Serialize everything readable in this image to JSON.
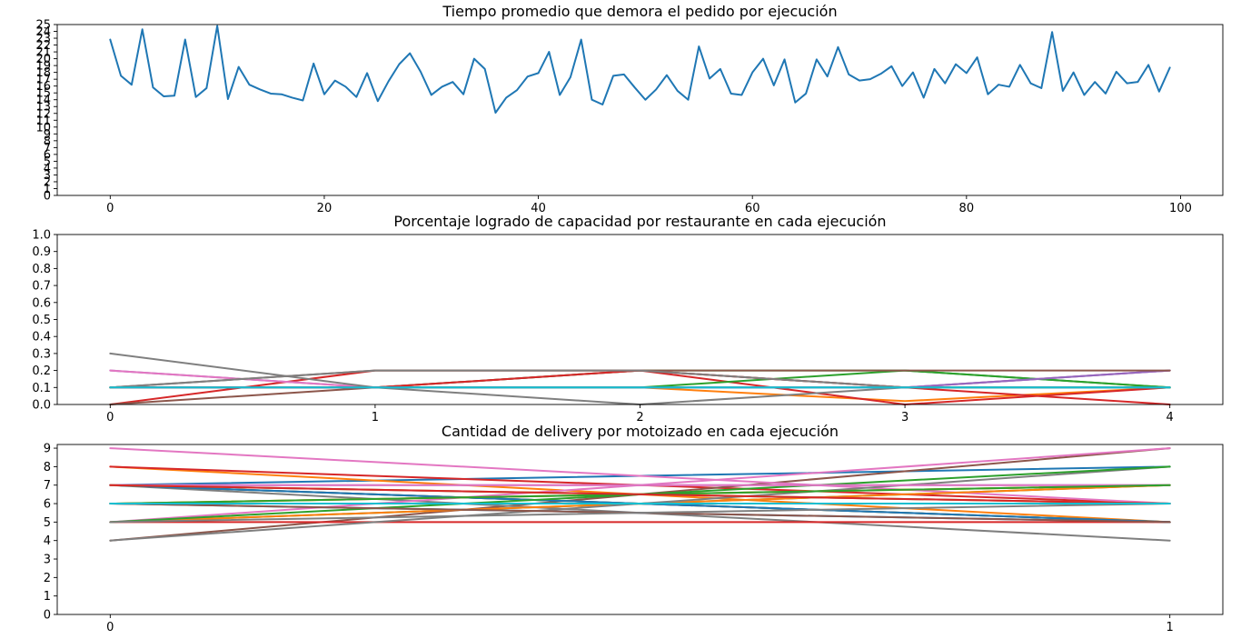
{
  "chart_data": [
    {
      "type": "line",
      "title": "Tiempo promedio que demora el pedido por ejecución",
      "xlim": [
        -4.95,
        103.95
      ],
      "ylim": [
        0,
        25
      ],
      "xticks": [
        0,
        20,
        40,
        60,
        80,
        100
      ],
      "yticks": [
        0,
        1,
        2,
        3,
        4,
        5,
        6,
        7,
        8,
        9,
        10,
        11,
        12,
        13,
        14,
        15,
        16,
        17,
        18,
        19,
        20,
        21,
        22,
        23,
        24,
        25
      ],
      "grid": false,
      "series": [
        {
          "color": "#1f77b4",
          "x": [
            0,
            1,
            2,
            3,
            4,
            5,
            6,
            7,
            8,
            9,
            10,
            11,
            12,
            13,
            14,
            15,
            16,
            17,
            18,
            19,
            20,
            21,
            22,
            23,
            24,
            25,
            26,
            27,
            28,
            29,
            30,
            31,
            32,
            33,
            34,
            35,
            36,
            37,
            38,
            39,
            40,
            41,
            42,
            43,
            44,
            45,
            46,
            47,
            48,
            49,
            50,
            51,
            52,
            53,
            54,
            55,
            56,
            57,
            58,
            59,
            60,
            61,
            62,
            63,
            64,
            65,
            66,
            67,
            68,
            69,
            70,
            71,
            72,
            73,
            74,
            75,
            76,
            77,
            78,
            79,
            80,
            81,
            82,
            83,
            84,
            85,
            86,
            87,
            88,
            89,
            90,
            91,
            92,
            93,
            94,
            95,
            96,
            97,
            98,
            99
          ],
          "values": [
            22.8,
            17.5,
            16.2,
            24.3,
            15.8,
            14.5,
            14.6,
            22.8,
            14.4,
            15.7,
            24.8,
            14.1,
            18.8,
            16.2,
            15.5,
            14.9,
            14.8,
            14.3,
            13.9,
            19.3,
            14.8,
            16.8,
            15.9,
            14.4,
            17.9,
            13.8,
            16.7,
            19.2,
            20.8,
            18.1,
            14.7,
            15.9,
            16.6,
            14.8,
            20.0,
            18.5,
            12.1,
            14.3,
            15.4,
            17.4,
            17.9,
            21.0,
            14.7,
            17.3,
            22.8,
            14.0,
            13.3,
            17.5,
            17.7,
            15.8,
            14.0,
            15.5,
            17.6,
            15.3,
            14.0,
            21.8,
            17.1,
            18.5,
            14.9,
            14.7,
            18.0,
            20.0,
            16.1,
            19.9,
            13.6,
            14.9,
            19.9,
            17.4,
            21.7,
            17.7,
            16.8,
            17.0,
            17.8,
            18.9,
            16.0,
            18.0,
            14.3,
            18.5,
            16.4,
            19.2,
            17.9,
            20.2,
            14.8,
            16.2,
            15.9,
            19.1,
            16.4,
            15.7,
            23.9,
            15.3,
            18.0,
            14.7,
            16.6,
            14.9,
            18.1,
            16.4,
            16.6,
            19.1,
            15.2,
            18.7
          ]
        }
      ]
    },
    {
      "type": "line",
      "title": "Porcentaje logrado de capacidad por restaurante en cada ejecución",
      "xlim": [
        -0.2,
        4.2
      ],
      "ylim": [
        0,
        1.0
      ],
      "xticks": [
        0,
        1,
        2,
        3,
        4
      ],
      "yticks": [
        0.0,
        0.1,
        0.2,
        0.3,
        0.4,
        0.5,
        0.6,
        0.7,
        0.8,
        0.9,
        1.0
      ],
      "grid": false,
      "x": [
        0,
        1,
        2,
        3,
        4
      ],
      "series": [
        {
          "color": "#1f77b4",
          "values": [
            0.1,
            0.1,
            0.1,
            0.1,
            0.1
          ]
        },
        {
          "color": "#ff7f0e",
          "values": [
            0.1,
            0.1,
            0.1,
            0.02,
            0.1
          ]
        },
        {
          "color": "#2ca02c",
          "values": [
            0.1,
            0.1,
            0.2,
            0.2,
            0.1
          ]
        },
        {
          "color": "#d62728",
          "values": [
            0.0,
            0.2,
            0.2,
            0.0,
            0.1
          ]
        },
        {
          "color": "#9467bd",
          "values": [
            0.2,
            0.1,
            0.1,
            0.1,
            0.2
          ]
        },
        {
          "color": "#8c564b",
          "values": [
            0.0,
            0.1,
            0.2,
            0.1,
            0.1
          ]
        },
        {
          "color": "#e377c2",
          "values": [
            0.2,
            0.1,
            0.1,
            0.1,
            0.2
          ]
        },
        {
          "color": "#7f7f7f",
          "values": [
            0.3,
            0.1,
            0.0,
            0.1,
            0.1
          ]
        },
        {
          "color": "#bcbd22",
          "values": [
            0.1,
            0.1,
            0.1,
            0.1,
            0.1
          ]
        },
        {
          "color": "#17becf",
          "values": [
            0.1,
            0.1,
            0.1,
            0.1,
            0.1
          ]
        },
        {
          "color": "#2ca02c",
          "values": [
            0.1,
            0.1,
            0.1,
            0.2,
            0.1
          ]
        },
        {
          "color": "#d62728",
          "values": [
            0.1,
            0.1,
            0.2,
            0.1,
            0.0
          ]
        },
        {
          "color": "#9467bd",
          "values": [
            0.1,
            0.1,
            0.1,
            0.1,
            0.2
          ]
        },
        {
          "color": "#8c564b",
          "values": [
            0.1,
            0.2,
            0.2,
            0.2,
            0.2
          ]
        },
        {
          "color": "#7f7f7f",
          "values": [
            0.1,
            0.2,
            0.2,
            0.1,
            0.1
          ]
        },
        {
          "color": "#17becf",
          "values": [
            0.1,
            0.1,
            0.1,
            0.1,
            0.1
          ]
        }
      ]
    },
    {
      "type": "line",
      "title": "Cantidad de delivery por motoizado en cada ejecución",
      "xlim": [
        -0.05,
        1.05
      ],
      "ylim": [
        0,
        9.2
      ],
      "xticks": [
        0,
        1
      ],
      "yticks": [
        0,
        1,
        2,
        3,
        4,
        5,
        6,
        7,
        8,
        9
      ],
      "grid": false,
      "x": [
        0,
        1
      ],
      "series": [
        {
          "color": "#1f77b4",
          "values": [
            7,
            8
          ]
        },
        {
          "color": "#ff7f0e",
          "values": [
            8,
            5
          ]
        },
        {
          "color": "#2ca02c",
          "values": [
            5,
            7
          ]
        },
        {
          "color": "#d62728",
          "values": [
            8,
            6
          ]
        },
        {
          "color": "#9467bd",
          "values": [
            6,
            6
          ]
        },
        {
          "color": "#8c564b",
          "values": [
            4,
            9
          ]
        },
        {
          "color": "#e377c2",
          "values": [
            9,
            6
          ]
        },
        {
          "color": "#7f7f7f",
          "values": [
            7,
            4
          ]
        },
        {
          "color": "#bcbd22",
          "values": [
            6,
            7
          ]
        },
        {
          "color": "#17becf",
          "values": [
            6,
            6
          ]
        },
        {
          "color": "#1f77b4",
          "values": [
            6,
            5
          ]
        },
        {
          "color": "#ff7f0e",
          "values": [
            5,
            7
          ]
        },
        {
          "color": "#2ca02c",
          "values": [
            7,
            5
          ]
        },
        {
          "color": "#d62728",
          "values": [
            5,
            5
          ]
        },
        {
          "color": "#9467bd",
          "values": [
            7,
            6
          ]
        },
        {
          "color": "#8c564b",
          "values": [
            7,
            5
          ]
        },
        {
          "color": "#e377c2",
          "values": [
            5,
            9
          ]
        },
        {
          "color": "#7f7f7f",
          "values": [
            4,
            8
          ]
        },
        {
          "color": "#bcbd22",
          "values": [
            6,
            6
          ]
        },
        {
          "color": "#17becf",
          "values": [
            6,
            6
          ]
        },
        {
          "color": "#1f77b4",
          "values": [
            7,
            5
          ]
        },
        {
          "color": "#ff7f0e",
          "values": [
            6,
            7
          ]
        },
        {
          "color": "#2ca02c",
          "values": [
            5,
            8
          ]
        },
        {
          "color": "#d62728",
          "values": [
            6,
            6
          ]
        },
        {
          "color": "#9467bd",
          "values": [
            7,
            7
          ]
        },
        {
          "color": "#8c564b",
          "values": [
            6,
            5
          ]
        },
        {
          "color": "#e377c2",
          "values": [
            7,
            7
          ]
        },
        {
          "color": "#7f7f7f",
          "values": [
            5,
            6
          ]
        },
        {
          "color": "#bcbd22",
          "values": [
            7,
            6
          ]
        },
        {
          "color": "#17becf",
          "values": [
            6,
            6
          ]
        },
        {
          "color": "#2ca02c",
          "values": [
            6,
            7
          ]
        },
        {
          "color": "#d62728",
          "values": [
            7,
            6
          ]
        },
        {
          "color": "#1f77b4",
          "values": [
            6,
            6
          ]
        },
        {
          "color": "#17becf",
          "values": [
            6,
            6
          ]
        }
      ]
    }
  ]
}
